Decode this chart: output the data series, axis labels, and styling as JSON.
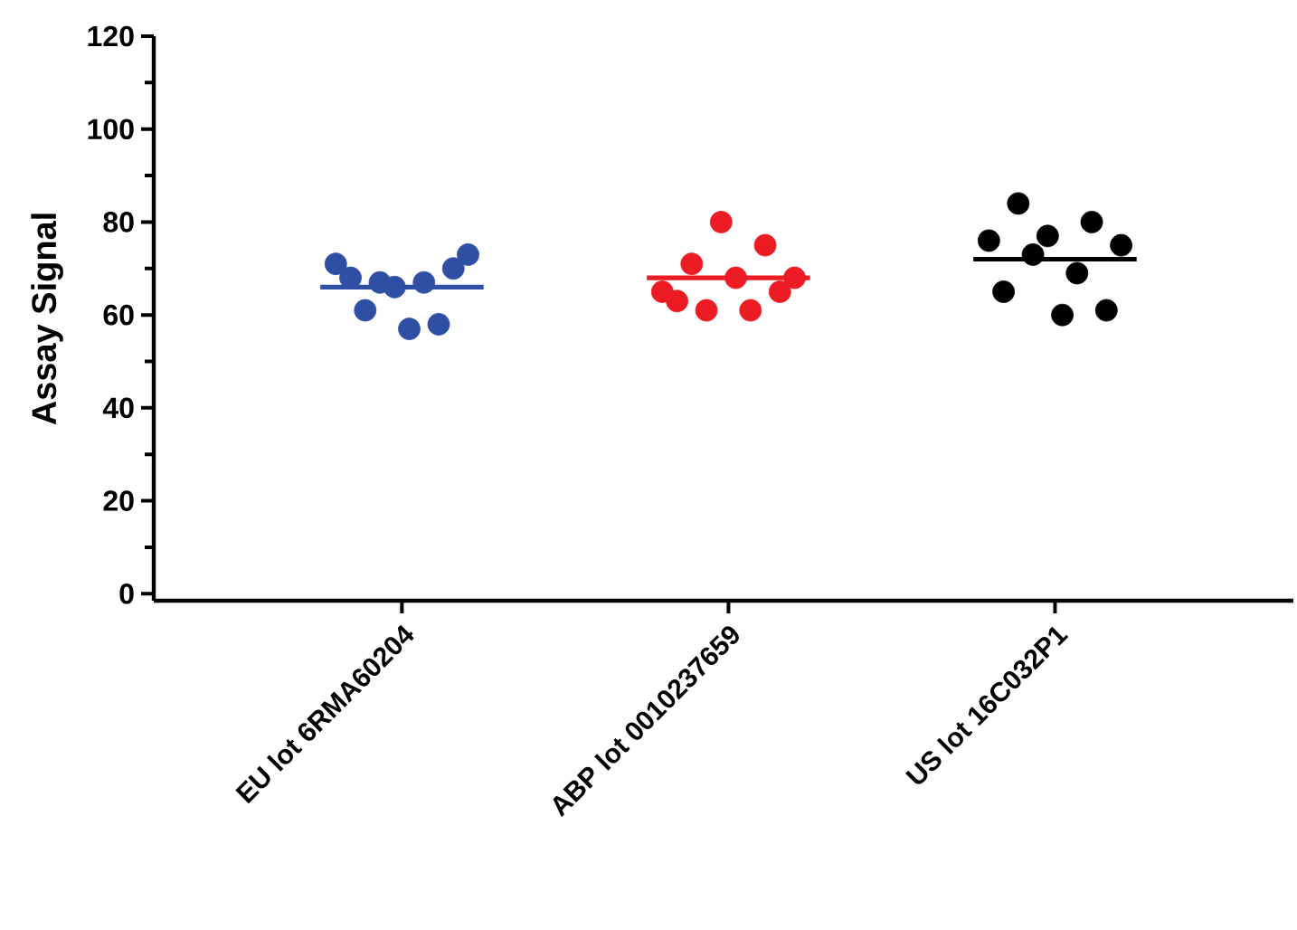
{
  "chart_data": {
    "type": "scatter",
    "ylabel": "Assay Signal",
    "categories": [
      "EU lot 6RMA60204",
      "ABP lot 0010237659",
      "US lot 16C032P1"
    ],
    "ylim": [
      -1.5,
      120
    ],
    "yticks": [
      0,
      {
        "value": 10,
        "label": null
      },
      20,
      {
        "value": 30,
        "label": null
      },
      40,
      {
        "value": 50,
        "label": null
      },
      60,
      {
        "value": 70,
        "label": null
      },
      80,
      {
        "value": 90,
        "label": null
      },
      100,
      {
        "value": 110,
        "label": null
      },
      120
    ],
    "series": [
      {
        "color": "#2e4fa3",
        "x": [
          "EU lot 6RMA60204",
          "EU lot 6RMA60204",
          "EU lot 6RMA60204",
          "EU lot 6RMA60204",
          "EU lot 6RMA60204",
          "EU lot 6RMA60204",
          "EU lot 6RMA60204",
          "EU lot 6RMA60204",
          "EU lot 6RMA60204",
          "EU lot 6RMA60204"
        ],
        "values": [
          71,
          68,
          61,
          67,
          66,
          57,
          67,
          58,
          70,
          73
        ]
      },
      {
        "color": "#ed1c24",
        "x": [
          "ABP lot 0010237659",
          "ABP lot 0010237659",
          "ABP lot 0010237659",
          "ABP lot 0010237659",
          "ABP lot 0010237659",
          "ABP lot 0010237659",
          "ABP lot 0010237659",
          "ABP lot 0010237659",
          "ABP lot 0010237659",
          "ABP lot 0010237659"
        ],
        "values": [
          65,
          63,
          71,
          61,
          80,
          68,
          61,
          75,
          65,
          68
        ]
      },
      {
        "color": "#000000",
        "x": [
          "US lot 16C032P1",
          "US lot 16C032P1",
          "US lot 16C032P1",
          "US lot 16C032P1",
          "US lot 16C032P1",
          "US lot 16C032P1",
          "US lot 16C032P1",
          "US lot 16C032P1",
          "US lot 16C032P1",
          "US lot 16C032P1"
        ],
        "values": [
          76,
          65,
          84,
          73,
          77,
          60,
          69,
          80,
          61,
          75
        ]
      }
    ],
    "ref_lines": [
      {
        "axis": "y",
        "value": 66,
        "color": "#2e4fa3"
      },
      {
        "axis": "y",
        "value": 68,
        "color": "#ed1c24"
      },
      {
        "axis": "y",
        "value": 72,
        "color": "#000000"
      }
    ]
  }
}
